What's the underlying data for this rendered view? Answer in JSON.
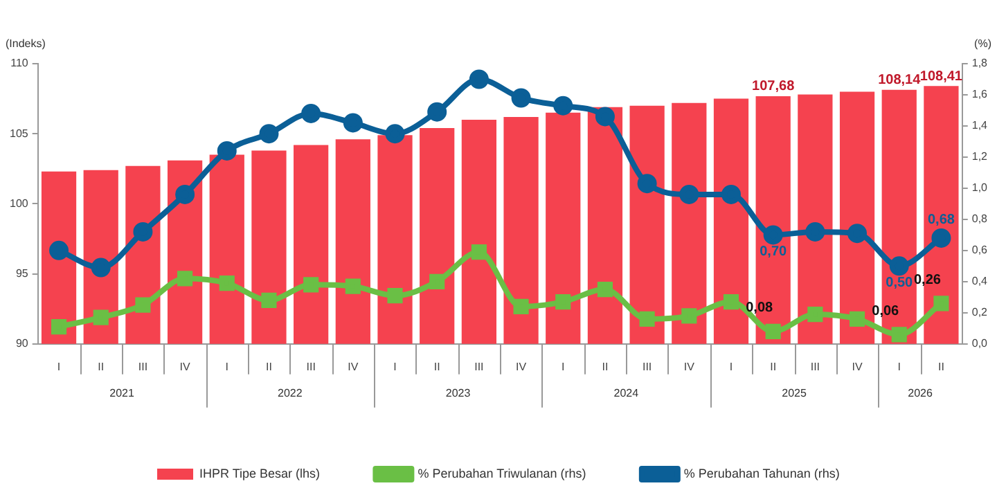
{
  "chart_data": {
    "type": "bar",
    "ylabel": "(Indeks)",
    "y2label": "(%)",
    "categories": [
      "I",
      "II",
      "III",
      "IV",
      "I",
      "II",
      "III",
      "IV",
      "I",
      "II",
      "III",
      "IV",
      "I",
      "II",
      "III",
      "IV",
      "I",
      "II",
      "III",
      "IV",
      "I",
      "II"
    ],
    "annotations": [
      "2021",
      "2022",
      "2023",
      "2024",
      "2025",
      "2026"
    ],
    "series": [
      {
        "name": "IHPR Tipe Besar (lhs)",
        "color": "#f5424f",
        "values": [
          102.3,
          102.4,
          102.7,
          103.1,
          103.5,
          103.8,
          104.2,
          104.6,
          104.9,
          105.4,
          106.0,
          106.2,
          106.5,
          106.9,
          107.0,
          107.2,
          107.5,
          107.68,
          107.8,
          108.0,
          108.14,
          108.41
        ],
        "value_labels": [
          null,
          null,
          null,
          null,
          null,
          null,
          null,
          null,
          null,
          null,
          null,
          null,
          null,
          null,
          null,
          null,
          null,
          "107,68",
          null,
          null,
          "108,14",
          "108,41"
        ]
      },
      {
        "name": "% Perubahan Triwulanan (rhs)",
        "type": "line",
        "axis": "y2",
        "marker": "square",
        "color": "#6abf45",
        "values": [
          0.11,
          0.17,
          0.25,
          0.42,
          0.39,
          0.28,
          0.38,
          0.37,
          0.31,
          0.4,
          0.59,
          0.24,
          0.27,
          0.35,
          0.16,
          0.18,
          0.27,
          0.08,
          0.19,
          0.16,
          0.06,
          0.26
        ],
        "value_labels": [
          null,
          null,
          null,
          null,
          null,
          null,
          null,
          null,
          null,
          null,
          null,
          null,
          null,
          null,
          null,
          null,
          null,
          "0,08",
          null,
          null,
          "0,06",
          "0,26"
        ]
      },
      {
        "name": "% Perubahan Tahunan (rhs)",
        "type": "line",
        "axis": "y2",
        "marker": "circle",
        "color": "#0b5f97",
        "values": [
          0.6,
          0.49,
          0.72,
          0.96,
          1.24,
          1.35,
          1.48,
          1.42,
          1.35,
          1.49,
          1.7,
          1.58,
          1.53,
          1.46,
          1.03,
          0.96,
          0.96,
          0.7,
          0.72,
          0.71,
          0.5,
          0.68
        ],
        "value_labels": [
          null,
          null,
          null,
          null,
          null,
          null,
          null,
          null,
          null,
          null,
          null,
          null,
          null,
          null,
          null,
          null,
          null,
          "0,70",
          null,
          null,
          "0,50",
          "0,68"
        ]
      }
    ],
    "ylim": [
      90,
      110
    ],
    "yticks": [
      90,
      95,
      100,
      105,
      110
    ],
    "y2lim": [
      0,
      1.8
    ],
    "y2ticks": [
      {
        "value": 0,
        "label": "0,0"
      },
      {
        "value": 0.2,
        "label": "0,2"
      },
      {
        "value": 0.4,
        "label": "0,4"
      },
      {
        "value": 0.6,
        "label": "0,6"
      },
      {
        "value": 0.8,
        "label": "0,8"
      },
      {
        "value": 1,
        "label": "1,0"
      },
      {
        "value": 1.2,
        "label": "1,2"
      },
      {
        "value": 1.4,
        "label": "1,4"
      },
      {
        "value": 1.6,
        "label": "1,6"
      },
      {
        "value": 1.8,
        "label": "1,8"
      }
    ],
    "grid": false,
    "legend": "bottom"
  }
}
